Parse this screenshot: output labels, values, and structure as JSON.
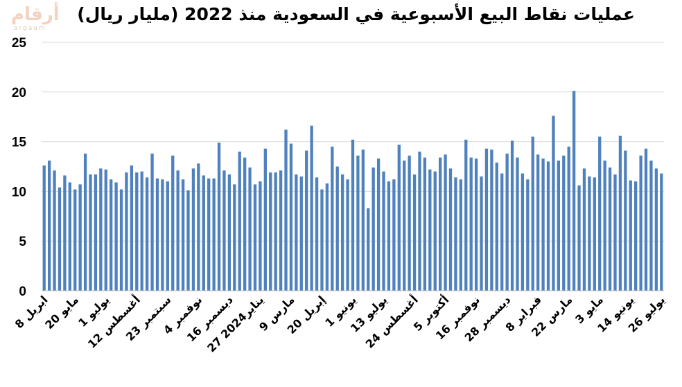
{
  "logo": {
    "main": "أرقام",
    "sub": "argaam"
  },
  "chart_data": {
    "type": "bar",
    "title": "عمليات نقاط البيع الأسبوعية في السعودية منذ 2022 (مليار ريال)",
    "ylim": [
      0,
      25
    ],
    "yticks": [
      0,
      5,
      10,
      15,
      20,
      25
    ],
    "grid": true,
    "bar_color": "#4f81bd",
    "values": [
      12.6,
      13.1,
      12.1,
      10.4,
      11.6,
      10.9,
      10.2,
      10.7,
      13.8,
      11.7,
      11.7,
      12.3,
      12.2,
      11.2,
      10.9,
      10.2,
      11.9,
      12.6,
      11.9,
      12.0,
      11.4,
      13.8,
      11.3,
      11.2,
      11.0,
      13.6,
      12.1,
      11.2,
      10.1,
      12.3,
      12.8,
      11.6,
      11.3,
      11.3,
      14.9,
      12.1,
      11.7,
      10.7,
      14.0,
      13.4,
      12.4,
      10.7,
      11.0,
      14.3,
      11.9,
      11.9,
      12.1,
      16.2,
      14.8,
      11.7,
      11.5,
      14.1,
      16.6,
      11.4,
      10.2,
      10.8,
      14.5,
      12.5,
      11.7,
      11.2,
      15.2,
      13.6,
      14.2,
      8.3,
      12.4,
      13.3,
      12.0,
      11.0,
      11.2,
      14.7,
      13.1,
      13.6,
      11.7,
      14.0,
      13.4,
      12.2,
      12.0,
      13.4,
      13.7,
      12.3,
      11.4,
      11.2,
      15.2,
      13.4,
      13.3,
      11.5,
      14.3,
      14.2,
      12.9,
      11.8,
      13.8,
      15.1,
      13.4,
      11.8,
      11.2,
      15.5,
      13.7,
      13.3,
      13.0,
      17.6,
      13.1,
      13.6,
      14.5,
      20.1,
      10.6,
      12.3,
      11.5,
      11.4,
      15.5,
      13.1,
      12.4,
      11.7,
      15.6,
      14.1,
      11.1,
      11.0,
      13.6,
      14.3,
      13.1,
      12.3,
      11.8
    ],
    "x_labels": [
      {
        "index": 0,
        "text": "8 ابريل"
      },
      {
        "index": 6,
        "text": "20 مايو"
      },
      {
        "index": 12,
        "text": "1 يوليو"
      },
      {
        "index": 18,
        "text": "12 أغسطس"
      },
      {
        "index": 24,
        "text": "23 سبتمبر"
      },
      {
        "index": 30,
        "text": "4 نوفمبر"
      },
      {
        "index": 36,
        "text": "16 ديسمبر"
      },
      {
        "index": 42,
        "text": "27 يناير2024"
      },
      {
        "index": 48,
        "text": "9 مارس"
      },
      {
        "index": 54,
        "text": "20 إبريل"
      },
      {
        "index": 60,
        "text": "1 يونيو"
      },
      {
        "index": 66,
        "text": "13 يوليو"
      },
      {
        "index": 72,
        "text": "24 أغسطس"
      },
      {
        "index": 78,
        "text": "5 أكتوبر"
      },
      {
        "index": 84,
        "text": "16 نوفمبر"
      },
      {
        "index": 90,
        "text": "28 ديسمبر"
      },
      {
        "index": 96,
        "text": "8 فبراير"
      },
      {
        "index": 102,
        "text": "22 مارس"
      },
      {
        "index": 108,
        "text": "3 مايو"
      },
      {
        "index": 114,
        "text": "14 يونيو"
      },
      {
        "index": 120,
        "text": "26 يوليو"
      }
    ]
  }
}
